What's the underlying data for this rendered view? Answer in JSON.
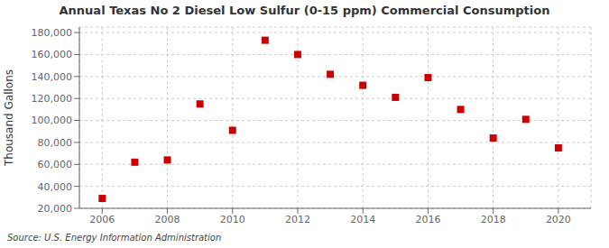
{
  "chart_data": {
    "type": "scatter",
    "title": "Annual Texas No 2 Diesel Low Sulfur (0-15 ppm) Commercial Consumption",
    "ylabel": "Thousand Gallons",
    "annotations": [
      "Source: U.S. Energy Information Administration"
    ],
    "x": [
      2006,
      2007,
      2008,
      2009,
      2010,
      2011,
      2012,
      2013,
      2014,
      2015,
      2016,
      2017,
      2018,
      2019,
      2020
    ],
    "values": [
      29000,
      62000,
      64000,
      115000,
      91000,
      173000,
      160000,
      142000,
      132000,
      121000,
      139000,
      110000,
      84000,
      101000,
      75000
    ],
    "color": "#cc0000",
    "marker": "square",
    "xlim": [
      2005.3,
      2021.0
    ],
    "ylim": [
      20000,
      185000
    ],
    "xticks": [
      2006,
      2008,
      2010,
      2012,
      2014,
      2016,
      2018,
      2020
    ],
    "yticks": [
      {
        "value": 20000,
        "label": "20,000"
      },
      {
        "value": 40000,
        "label": "40,000"
      },
      {
        "value": 60000,
        "label": "60,000"
      },
      {
        "value": 80000,
        "label": "80,000"
      },
      {
        "value": 100000,
        "label": "100,000"
      },
      {
        "value": 120000,
        "label": "120,000"
      },
      {
        "value": 140000,
        "label": "140,000"
      },
      {
        "value": 160000,
        "label": "160,000"
      },
      {
        "value": 180000,
        "label": "180,000"
      }
    ],
    "grid": true
  }
}
